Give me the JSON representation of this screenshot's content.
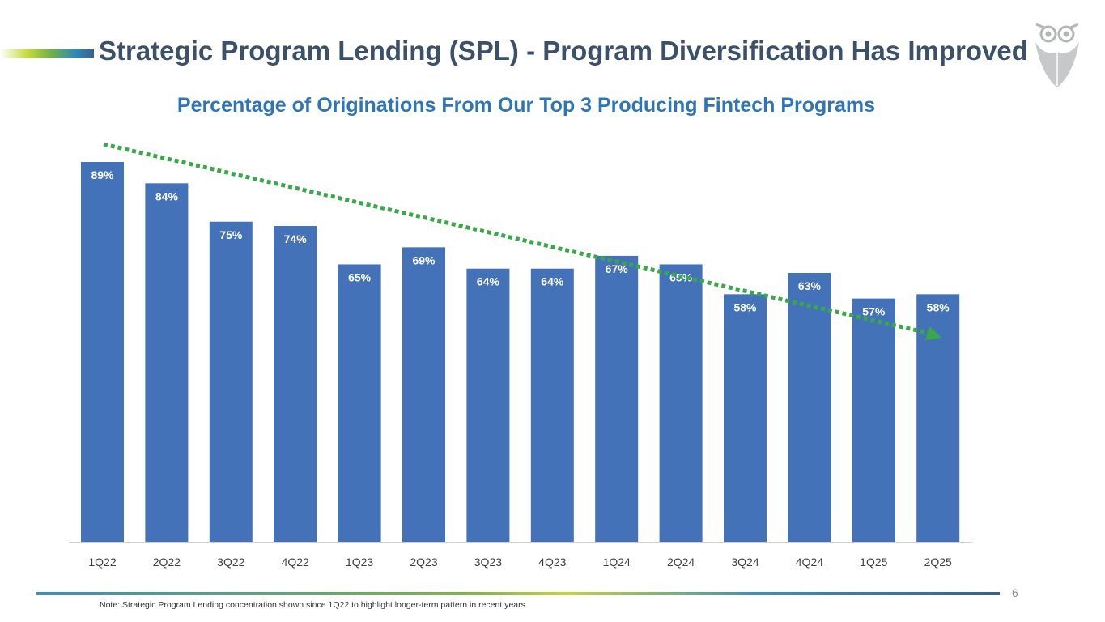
{
  "slide": {
    "title": "Strategic Program Lending (SPL) - Program Diversification Has Improved",
    "page_number": "6",
    "footnote": "Note: Strategic Program Lending concentration shown since 1Q22 to highlight longer-term pattern in recent years"
  },
  "chart_data": {
    "type": "bar",
    "title": "Percentage of Originations From Our Top 3 Producing Fintech Programs",
    "categories": [
      "1Q22",
      "2Q22",
      "3Q22",
      "4Q22",
      "1Q23",
      "2Q23",
      "3Q23",
      "4Q23",
      "1Q24",
      "2Q24",
      "3Q24",
      "4Q24",
      "1Q25",
      "2Q25"
    ],
    "values": [
      89,
      84,
      75,
      74,
      65,
      69,
      64,
      64,
      67,
      65,
      58,
      63,
      57,
      58
    ],
    "value_labels": [
      "89%",
      "84%",
      "75%",
      "74%",
      "65%",
      "69%",
      "64%",
      "64%",
      "67%",
      "65%",
      "58%",
      "63%",
      "57%",
      "58%"
    ],
    "ylim": [
      0,
      100
    ],
    "grid": false,
    "bar_color": "#4472b8",
    "trend_arrow": {
      "direction": "downward",
      "color": "#3aa84a",
      "style": "dotted"
    }
  }
}
